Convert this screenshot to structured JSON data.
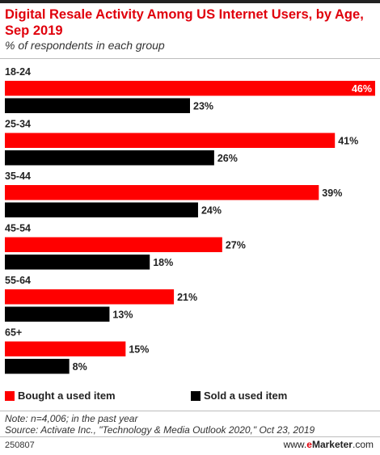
{
  "title": "Digital Resale Activity Among US Internet Users, by Age, Sep 2019",
  "subtitle": "% of respondents in each group",
  "chart_data": {
    "type": "bar",
    "orientation": "horizontal",
    "categories": [
      "18-24",
      "25-34",
      "35-44",
      "45-54",
      "55-64",
      "65+"
    ],
    "series": [
      {
        "name": "Bought a used item",
        "color": "#ff0000",
        "values": [
          46,
          41,
          39,
          27,
          21,
          15
        ]
      },
      {
        "name": "Sold a used item",
        "color": "#000000",
        "values": [
          23,
          26,
          24,
          18,
          13,
          8
        ]
      }
    ],
    "value_suffix": "%",
    "xlim": [
      0,
      46
    ],
    "grid": false,
    "legend": "bottom"
  },
  "legend": {
    "bought_label": "Bought a used item",
    "sold_label": "Sold a used item"
  },
  "note": "Note: n=4,006; in the past year",
  "source": "Source: Activate Inc., \"Technology & Media Outlook 2020,\" Oct 23, 2019",
  "footer": {
    "chart_id": "250807",
    "site_prefix": "www.",
    "site_em": "e",
    "site_brand": "Marketer",
    "site_suffix": ".com"
  },
  "colors": {
    "accent": "#e0000c",
    "bought": "#ff0000",
    "sold": "#000000"
  }
}
